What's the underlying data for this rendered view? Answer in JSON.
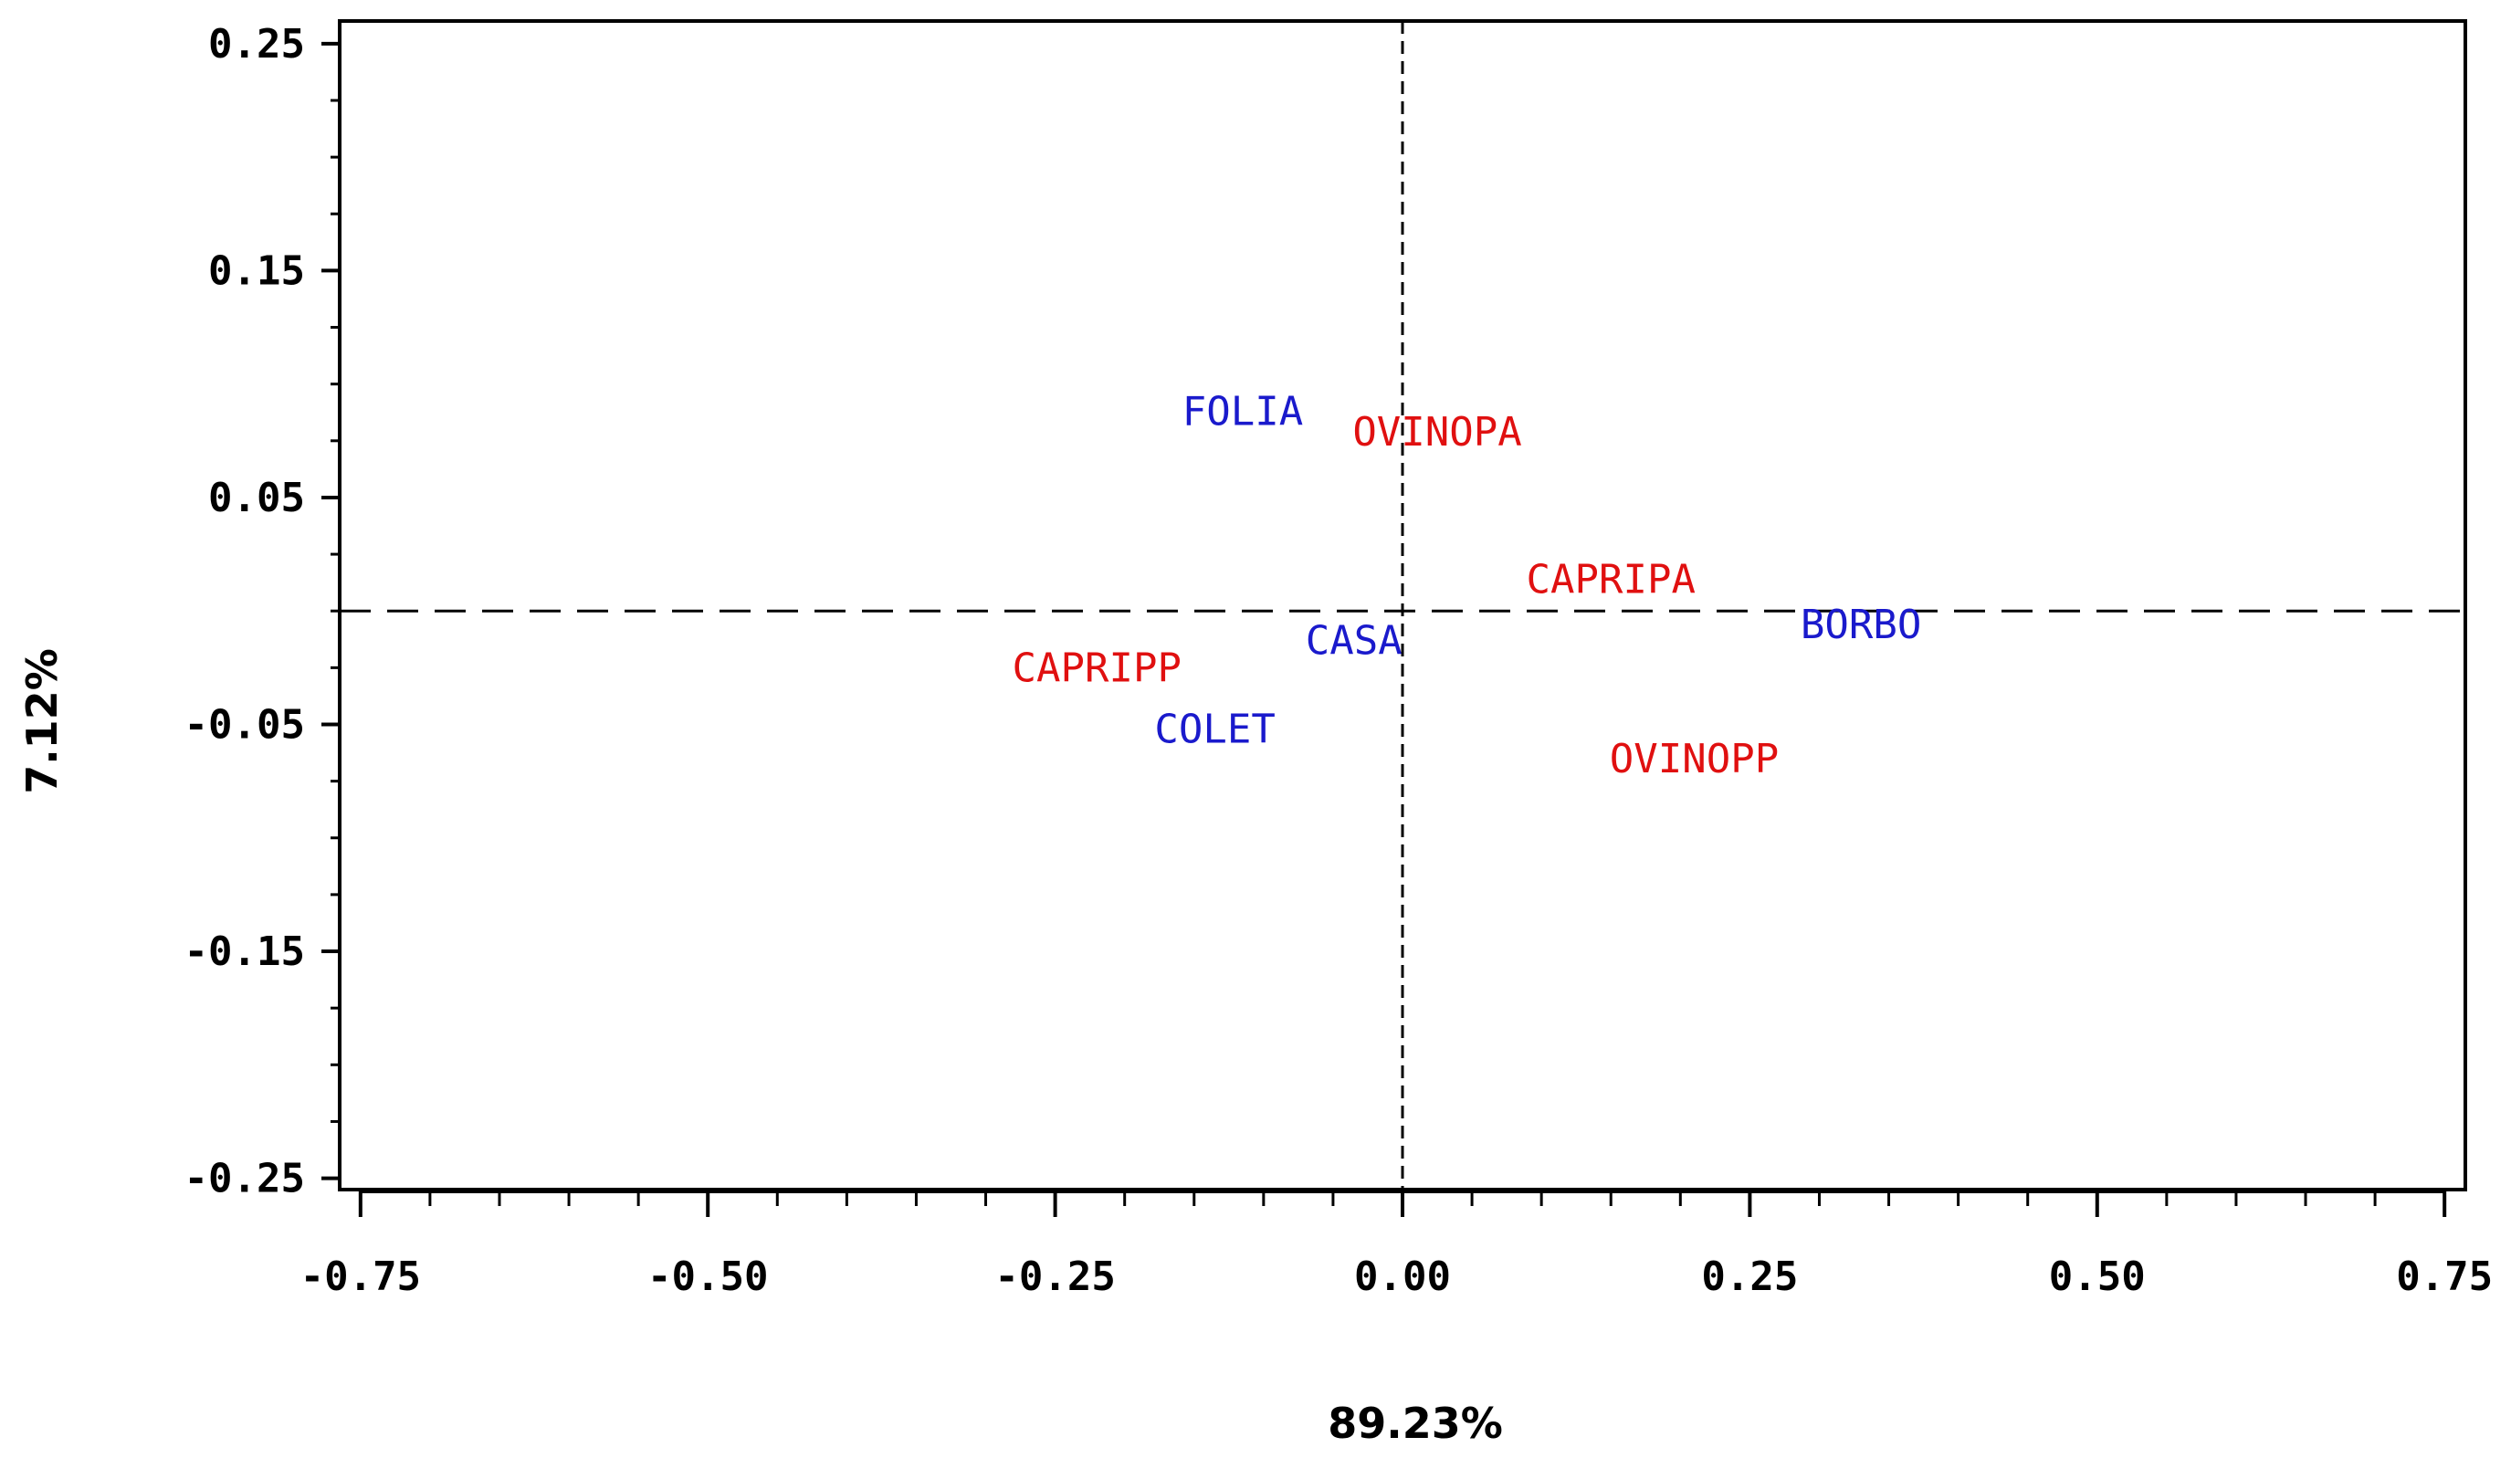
{
  "chart_data": {
    "type": "scatter",
    "title": "",
    "xlabel": "89.23%",
    "ylabel": "7.12%",
    "xlim": [
      -0.765,
      0.765
    ],
    "ylim": [
      -0.255,
      0.26
    ],
    "x_ticks": [
      "-0.75",
      "-0.50",
      "-0.25",
      "0.00",
      "0.25",
      "0.50",
      "0.75"
    ],
    "x_tick_values": [
      -0.75,
      -0.5,
      -0.25,
      0,
      0.25,
      0.5,
      0.75
    ],
    "y_ticks": [
      "0.25",
      "0.15",
      "0.05",
      "-0.05",
      "-0.15",
      "-0.25"
    ],
    "y_tick_values": [
      0.25,
      0.15,
      0.05,
      -0.05,
      -0.15,
      -0.25
    ],
    "reference_lines": {
      "x": 0,
      "y": 0,
      "style": "dashed"
    },
    "grid": false,
    "colors": {
      "group_a": "#1a1acc",
      "group_b": "#e01010"
    },
    "points": [
      {
        "label": "FOLIA",
        "x": -0.115,
        "y": 0.088,
        "group": "group_a"
      },
      {
        "label": "OVINOPA",
        "x": 0.025,
        "y": 0.079,
        "group": "group_b"
      },
      {
        "label": "CAPRIPA",
        "x": 0.15,
        "y": 0.014,
        "group": "group_b"
      },
      {
        "label": "BORBO",
        "x": 0.33,
        "y": -0.006,
        "group": "group_a"
      },
      {
        "label": "CASA",
        "x": -0.035,
        "y": -0.013,
        "group": "group_a"
      },
      {
        "label": "CAPRIPP",
        "x": -0.22,
        "y": -0.025,
        "group": "group_b"
      },
      {
        "label": "COLET",
        "x": -0.135,
        "y": -0.052,
        "group": "group_a"
      },
      {
        "label": "OVINOPP",
        "x": 0.21,
        "y": -0.065,
        "group": "group_b"
      }
    ]
  }
}
